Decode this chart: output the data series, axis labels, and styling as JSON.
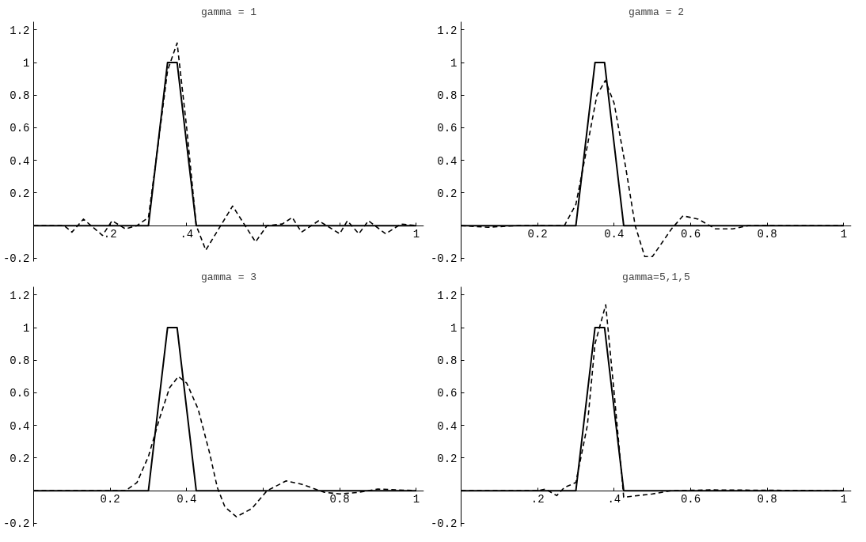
{
  "chart_data": [
    {
      "type": "line",
      "title": "gamma = 1",
      "xlim": [
        0,
        1.02
      ],
      "ylim": [
        -0.22,
        1.25
      ],
      "xticks": [
        {
          "value": 0.2,
          "label": ".2"
        },
        {
          "value": 0.4,
          "label": ".4"
        },
        {
          "value": 0.6,
          "label": null
        },
        {
          "value": 0.8,
          "label": null
        },
        1
      ],
      "yticks": [
        -0.2,
        0.2,
        0.4,
        0.6,
        0.8,
        1,
        1.2
      ],
      "series": [
        {
          "color": "#000000",
          "line_style": "solid",
          "x": [
            0,
            0.3,
            0.35,
            0.375,
            0.425,
            1
          ],
          "values": [
            0,
            0,
            1,
            1,
            0,
            0
          ]
        },
        {
          "color": "#000000",
          "line_style": "dashed",
          "x": [
            0,
            0.08,
            0.1,
            0.13,
            0.18,
            0.205,
            0.24,
            0.27,
            0.3,
            0.32,
            0.35,
            0.375,
            0.4,
            0.425,
            0.45,
            0.52,
            0.58,
            0.61,
            0.65,
            0.676,
            0.7,
            0.745,
            0.8,
            0.82,
            0.85,
            0.875,
            0.92,
            0.96,
            1
          ],
          "values": [
            0,
            0,
            -0.04,
            0.04,
            -0.06,
            0.03,
            -0.02,
            0,
            0.05,
            0.4,
            0.95,
            1.12,
            0.6,
            0,
            -0.15,
            0.12,
            -0.1,
            0,
            0.01,
            0.05,
            -0.04,
            0.03,
            -0.05,
            0.03,
            -0.05,
            0.03,
            -0.05,
            0.01,
            0
          ]
        }
      ]
    },
    {
      "type": "line",
      "title": "gamma = 2",
      "xlim": [
        0,
        1.02
      ],
      "ylim": [
        -0.22,
        1.25
      ],
      "xticks": [
        0.2,
        0.4,
        0.6,
        0.8,
        1
      ],
      "yticks": [
        -0.2,
        0.2,
        0.4,
        0.6,
        0.8,
        1,
        1.2
      ],
      "series": [
        {
          "color": "#000000",
          "line_style": "solid",
          "x": [
            0,
            0.3,
            0.35,
            0.375,
            0.425,
            1
          ],
          "values": [
            0,
            0,
            1,
            1,
            0,
            0
          ]
        },
        {
          "color": "#000000",
          "line_style": "dashed",
          "x": [
            0,
            0.07,
            0.15,
            0.27,
            0.3,
            0.33,
            0.355,
            0.377,
            0.4,
            0.43,
            0.455,
            0.48,
            0.5,
            0.55,
            0.58,
            0.62,
            0.665,
            0.71,
            0.75,
            1
          ],
          "values": [
            0,
            -0.01,
            0,
            0,
            0.13,
            0.49,
            0.8,
            0.89,
            0.75,
            0.36,
            0,
            -0.19,
            -0.19,
            -0.02,
            0.06,
            0.04,
            -0.02,
            -0.02,
            0,
            0
          ]
        }
      ]
    },
    {
      "type": "line",
      "title": "gamma = 3",
      "xlim": [
        0,
        1.02
      ],
      "ylim": [
        -0.22,
        1.25
      ],
      "xticks": [
        0.2,
        0.4,
        {
          "value": 0.6,
          "label": null
        },
        0.8,
        1
      ],
      "yticks": [
        -0.2,
        0.2,
        0.4,
        0.6,
        0.8,
        1,
        1.2
      ],
      "series": [
        {
          "color": "#000000",
          "line_style": "solid",
          "x": [
            0,
            0.3,
            0.35,
            0.375,
            0.425,
            1
          ],
          "values": [
            0,
            0,
            1,
            1,
            0,
            0
          ]
        },
        {
          "color": "#000000",
          "line_style": "dashed",
          "x": [
            0,
            0.24,
            0.27,
            0.3,
            0.33,
            0.355,
            0.378,
            0.4,
            0.43,
            0.46,
            0.48,
            0.5,
            0.53,
            0.57,
            0.61,
            0.66,
            0.7,
            0.76,
            0.8,
            0.85,
            0.9,
            1
          ],
          "values": [
            0,
            0,
            0.05,
            0.21,
            0.45,
            0.63,
            0.7,
            0.66,
            0.5,
            0.23,
            0.02,
            -0.1,
            -0.16,
            -0.11,
            0,
            0.06,
            0.04,
            -0.01,
            -0.02,
            -0.01,
            0.01,
            0
          ]
        }
      ]
    },
    {
      "type": "line",
      "title": "gamma=5,1,5",
      "xlim": [
        0,
        1.02
      ],
      "ylim": [
        -0.22,
        1.25
      ],
      "xticks": [
        {
          "value": 0.2,
          "label": ".2"
        },
        {
          "value": 0.4,
          "label": ".4"
        },
        0.6,
        0.8,
        1
      ],
      "yticks": [
        -0.2,
        0.2,
        0.4,
        0.6,
        0.8,
        1,
        1.2
      ],
      "series": [
        {
          "color": "#000000",
          "line_style": "solid",
          "x": [
            0,
            0.3,
            0.35,
            0.375,
            0.425,
            1
          ],
          "values": [
            0,
            0,
            1,
            1,
            0,
            0
          ]
        },
        {
          "color": "#000000",
          "line_style": "dashed",
          "x": [
            0,
            0.2,
            0.22,
            0.25,
            0.27,
            0.3,
            0.33,
            0.35,
            0.378,
            0.4,
            0.425,
            0.5,
            0.55,
            0.65,
            1
          ],
          "values": [
            0,
            0,
            0.01,
            -0.03,
            0.02,
            0.05,
            0.4,
            0.9,
            1.14,
            0.6,
            -0.04,
            -0.02,
            0,
            0.005,
            0
          ]
        }
      ]
    }
  ]
}
